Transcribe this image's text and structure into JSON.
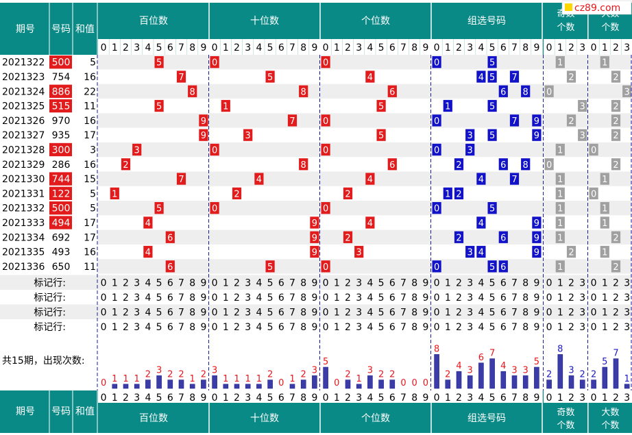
{
  "logo": {
    "text": "cz89.com",
    "mark_color": "#ffd700",
    "text_color": "#e8161b"
  },
  "colors": {
    "header_bg": "#0a8a86",
    "red_ball": "#e21c1c",
    "blue_ball": "#1212c8",
    "gray_ball": "#a0a0a0",
    "stripe": "#eeeeee",
    "bar_fill": "#3c3ca8",
    "divider": "#1a1aa0"
  },
  "header": {
    "issue_label": "期号",
    "number_label": "号码",
    "sum_label": "和值",
    "groups": [
      {
        "label": "百位数",
        "digits": [
          "0",
          "1",
          "2",
          "3",
          "4",
          "5",
          "6",
          "7",
          "8",
          "9"
        ]
      },
      {
        "label": "十位数",
        "digits": [
          "0",
          "1",
          "2",
          "3",
          "4",
          "5",
          "6",
          "7",
          "8",
          "9"
        ]
      },
      {
        "label": "个位数",
        "digits": [
          "0",
          "1",
          "2",
          "3",
          "4",
          "5",
          "6",
          "7",
          "8",
          "9"
        ]
      },
      {
        "label": "组选号码",
        "digits": [
          "0",
          "1",
          "2",
          "3",
          "4",
          "5",
          "6",
          "7",
          "8",
          "9"
        ]
      },
      {
        "label_line1": "奇数",
        "label_line2": "个数",
        "digits": [
          "0",
          "1",
          "2",
          "3"
        ]
      },
      {
        "label_line1": "大数",
        "label_line2": "个数",
        "digits": [
          "0",
          "1",
          "2",
          "3"
        ]
      }
    ]
  },
  "rows": [
    {
      "issue": "2021322",
      "number": "500",
      "sum": "5",
      "highlight": true
    },
    {
      "issue": "2021323",
      "number": "754",
      "sum": "16",
      "highlight": false
    },
    {
      "issue": "2021324",
      "number": "886",
      "sum": "22",
      "highlight": true
    },
    {
      "issue": "2021325",
      "number": "515",
      "sum": "11",
      "highlight": true
    },
    {
      "issue": "2021326",
      "number": "970",
      "sum": "16",
      "highlight": false
    },
    {
      "issue": "2021327",
      "number": "935",
      "sum": "17",
      "highlight": false
    },
    {
      "issue": "2021328",
      "number": "300",
      "sum": "3",
      "highlight": true
    },
    {
      "issue": "2021329",
      "number": "286",
      "sum": "16",
      "highlight": false
    },
    {
      "issue": "2021330",
      "number": "744",
      "sum": "15",
      "highlight": true
    },
    {
      "issue": "2021331",
      "number": "122",
      "sum": "5",
      "highlight": true
    },
    {
      "issue": "2021332",
      "number": "500",
      "sum": "5",
      "highlight": true
    },
    {
      "issue": "2021333",
      "number": "494",
      "sum": "17",
      "highlight": true
    },
    {
      "issue": "2021334",
      "number": "692",
      "sum": "17",
      "highlight": false
    },
    {
      "issue": "2021335",
      "number": "493",
      "sum": "16",
      "highlight": false
    },
    {
      "issue": "2021336",
      "number": "650",
      "sum": "11",
      "highlight": false
    }
  ],
  "marker_rows": {
    "label": "标记行:",
    "count": 4
  },
  "counts_label": "共15期，出现次数:",
  "chart_data": {
    "type": "bar",
    "series": [
      {
        "values": [
          0,
          1,
          1,
          1,
          2,
          3,
          2,
          2,
          1,
          2
        ]
      },
      {
        "values": [
          3,
          1,
          1,
          1,
          1,
          2,
          0,
          1,
          2,
          3
        ]
      },
      {
        "values": [
          5,
          0,
          2,
          1,
          3,
          2,
          2,
          0,
          0,
          0
        ]
      },
      {
        "values": [
          8,
          2,
          4,
          3,
          6,
          7,
          4,
          3,
          3,
          5
        ]
      },
      {
        "values": [
          2,
          8,
          3,
          2
        ]
      },
      {
        "values": [
          2,
          5,
          7,
          1
        ]
      }
    ]
  }
}
